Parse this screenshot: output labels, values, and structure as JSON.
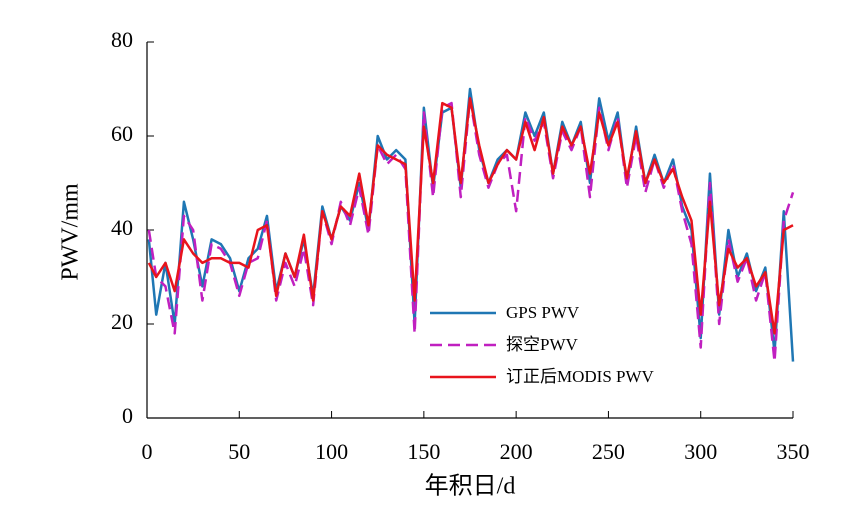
{
  "chart_data": {
    "type": "line",
    "xlabel": "年积日/d",
    "ylabel": "PWV/mm",
    "xlim": [
      0,
      350
    ],
    "xticks": [
      0,
      50,
      100,
      150,
      200,
      250,
      300,
      350
    ],
    "ylim": [
      0,
      80
    ],
    "yticks": [
      0,
      20,
      40,
      60,
      80
    ],
    "legend": "center",
    "x": [
      1,
      5,
      10,
      15,
      20,
      25,
      30,
      35,
      40,
      45,
      50,
      55,
      60,
      65,
      70,
      75,
      80,
      85,
      90,
      95,
      100,
      105,
      110,
      115,
      120,
      125,
      130,
      135,
      140,
      145,
      150,
      155,
      160,
      165,
      170,
      175,
      180,
      185,
      190,
      195,
      200,
      205,
      210,
      215,
      220,
      225,
      230,
      235,
      240,
      245,
      250,
      255,
      260,
      265,
      270,
      275,
      280,
      285,
      290,
      295,
      300,
      305,
      310,
      315,
      320,
      325,
      330,
      335,
      340,
      345,
      350
    ],
    "series": [
      {
        "name": "GPS PWV",
        "color": "#1f77b4",
        "dash": false,
        "values": [
          38,
          22,
          33,
          20,
          46,
          38,
          28,
          38,
          37,
          34,
          27,
          34,
          36,
          43,
          27,
          35,
          30,
          38,
          26,
          45,
          38,
          45,
          42,
          50,
          40,
          60,
          55,
          57,
          55,
          20,
          66,
          49,
          65,
          66,
          49,
          70,
          57,
          50,
          55,
          57,
          55,
          65,
          60,
          65,
          52,
          63,
          58,
          63,
          50,
          68,
          59,
          65,
          50,
          62,
          50,
          56,
          50,
          55,
          45,
          40,
          17,
          52,
          22,
          40,
          30,
          35,
          27,
          32,
          14,
          44,
          12
        ]
      },
      {
        "name": "探空PWV",
        "color": "#c020c0",
        "dash": true,
        "values": [
          40,
          30,
          28,
          18,
          43,
          40,
          25,
          37,
          36,
          33,
          26,
          33,
          34,
          42,
          25,
          33,
          28,
          36,
          24,
          44,
          37,
          46,
          41,
          49,
          39,
          58,
          54,
          56,
          53,
          18,
          65,
          47,
          66,
          67,
          47,
          68,
          56,
          49,
          54,
          56,
          44,
          64,
          59,
          63,
          51,
          61,
          57,
          62,
          47,
          66,
          57,
          64,
          49,
          60,
          48,
          55,
          49,
          54,
          44,
          37,
          15,
          50,
          20,
          38,
          29,
          34,
          25,
          31,
          12,
          42,
          48
        ]
      },
      {
        "name": "订正后MODIS PWV",
        "color": "#e8141c",
        "dash": false,
        "values": [
          33,
          30,
          33,
          27,
          38,
          35,
          33,
          34,
          34,
          33,
          33,
          32,
          40,
          41,
          26,
          35,
          30,
          39,
          25,
          44,
          38,
          45,
          43,
          52,
          41,
          58,
          56,
          55,
          54,
          25,
          62,
          50,
          67,
          66,
          50,
          68,
          58,
          50,
          54,
          57,
          55,
          63,
          57,
          64,
          52,
          62,
          58,
          62,
          52,
          65,
          58,
          63,
          51,
          61,
          50,
          55,
          50,
          53,
          47,
          42,
          22,
          46,
          24,
          36,
          32,
          34,
          28,
          31,
          18,
          40,
          41
        ]
      }
    ]
  }
}
